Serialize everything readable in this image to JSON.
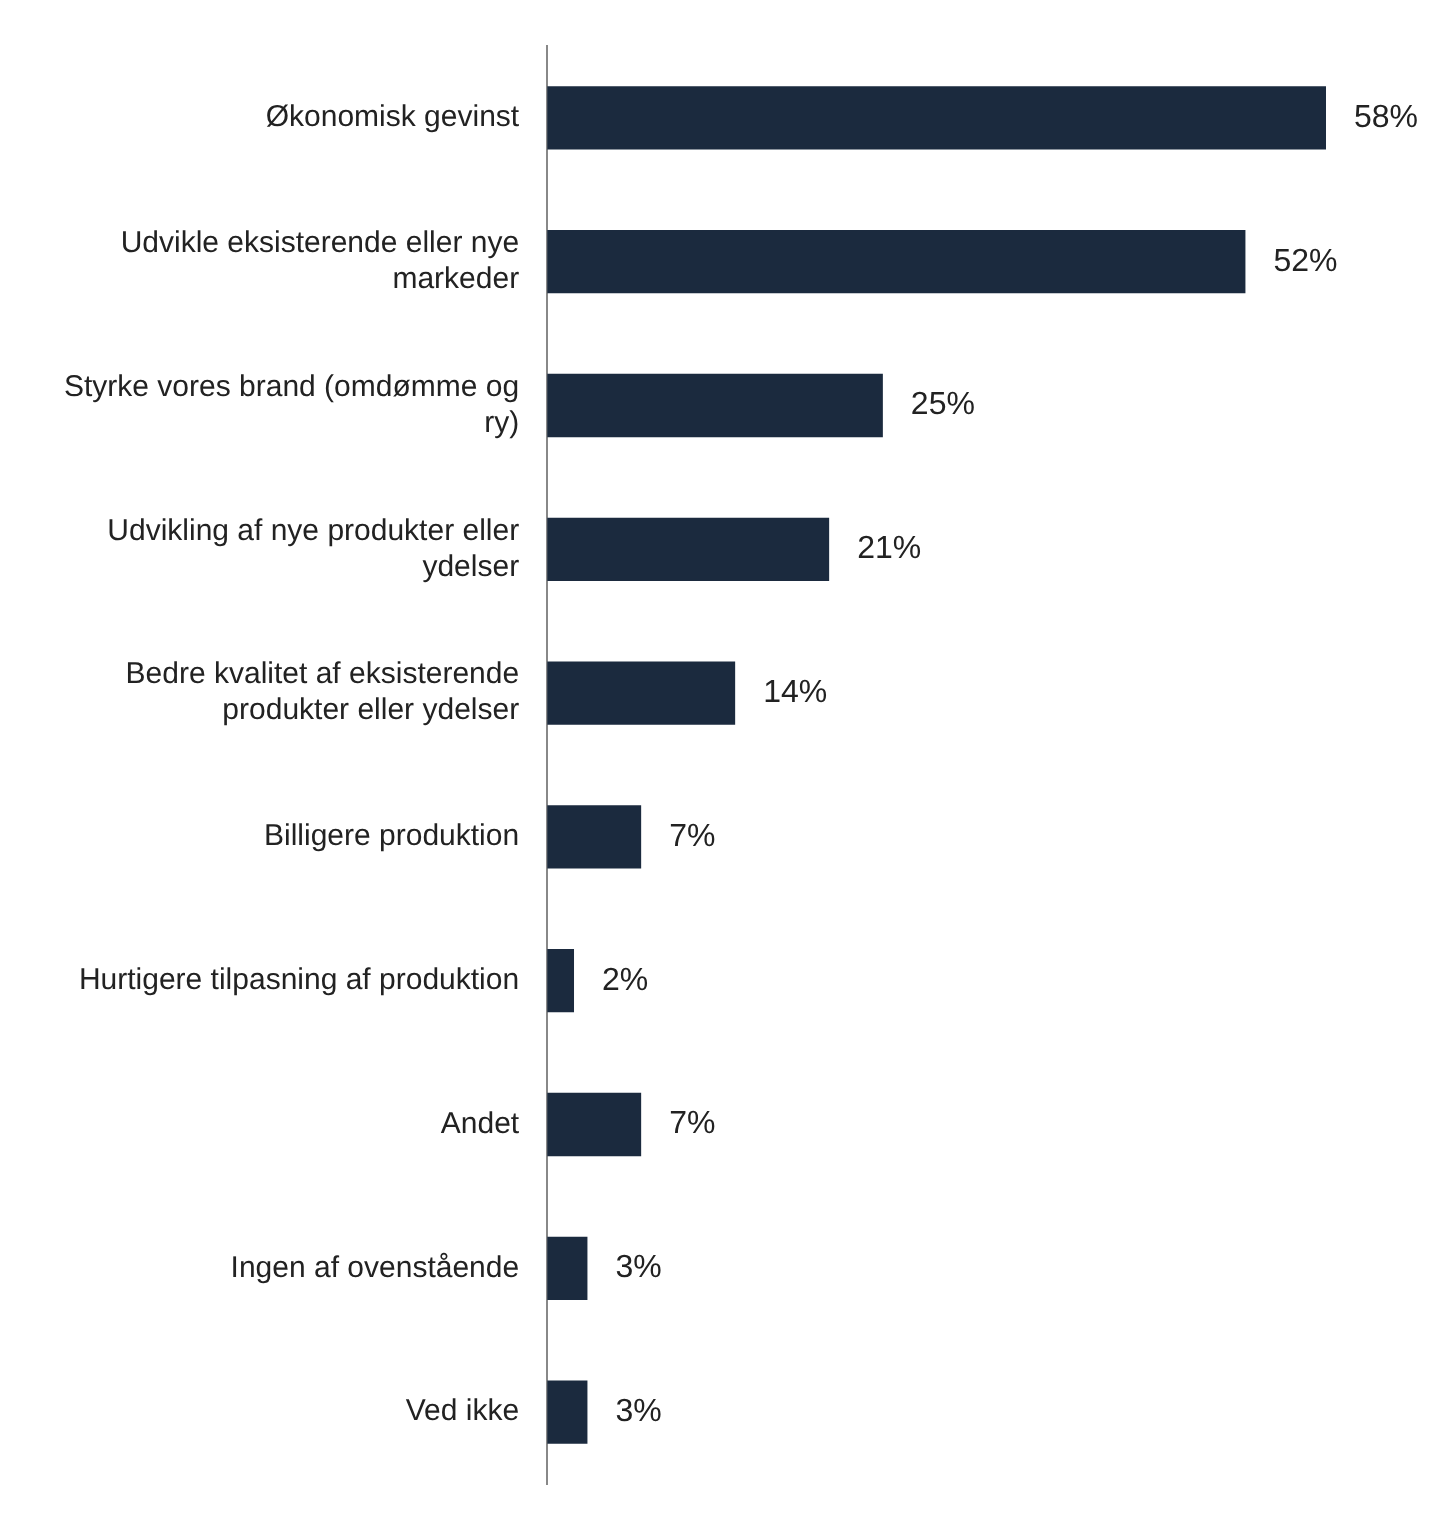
{
  "chart_data": {
    "type": "bar",
    "orientation": "horizontal",
    "categories": [
      "Økonomisk gevinst",
      "Udvikle eksisterende eller nye markeder",
      "Styrke vores brand (omdømme og ry)",
      "Udvikling af nye produkter eller ydelser",
      "Bedre kvalitet af eksisterende produkter eller ydelser",
      "Billigere produktion",
      "Hurtigere tilpasning af produktion",
      "Andet",
      "Ingen af ovenstående",
      "Ved ikke"
    ],
    "values": [
      58,
      52,
      25,
      21,
      14,
      7,
      2,
      7,
      3,
      3
    ],
    "value_labels": [
      "58%",
      "52%",
      "25%",
      "21%",
      "14%",
      "7%",
      "2%",
      "7%",
      "3%",
      "3%"
    ],
    "color": "#1b2a3e"
  }
}
